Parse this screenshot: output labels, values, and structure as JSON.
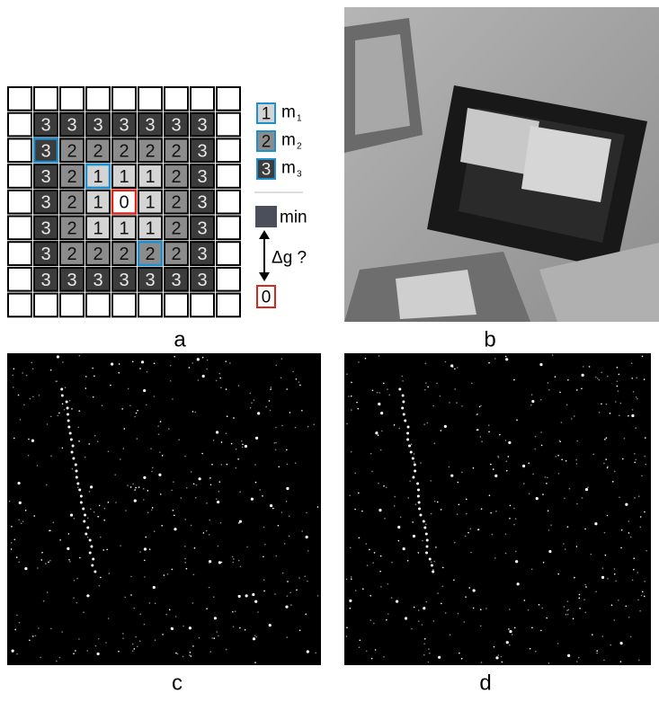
{
  "panel_a": {
    "grid": [
      [
        3,
        3,
        3,
        3,
        3,
        3,
        3
      ],
      [
        3,
        2,
        2,
        2,
        2,
        2,
        3
      ],
      [
        3,
        2,
        1,
        1,
        1,
        2,
        3
      ],
      [
        3,
        2,
        1,
        0,
        1,
        2,
        3
      ],
      [
        3,
        2,
        1,
        1,
        1,
        2,
        3
      ],
      [
        3,
        2,
        2,
        2,
        2,
        2,
        3
      ],
      [
        3,
        3,
        3,
        3,
        3,
        3,
        3
      ]
    ],
    "legend": [
      {
        "symbol": "1",
        "label": "m",
        "sub": "1"
      },
      {
        "symbol": "2",
        "label": "m",
        "sub": "2"
      },
      {
        "symbol": "3",
        "label": "m",
        "sub": "3"
      }
    ],
    "min_label": "min",
    "delta_label": "Δg ?",
    "result_symbol": "0"
  },
  "panel_labels": [
    "a",
    "b",
    "c",
    "d"
  ]
}
